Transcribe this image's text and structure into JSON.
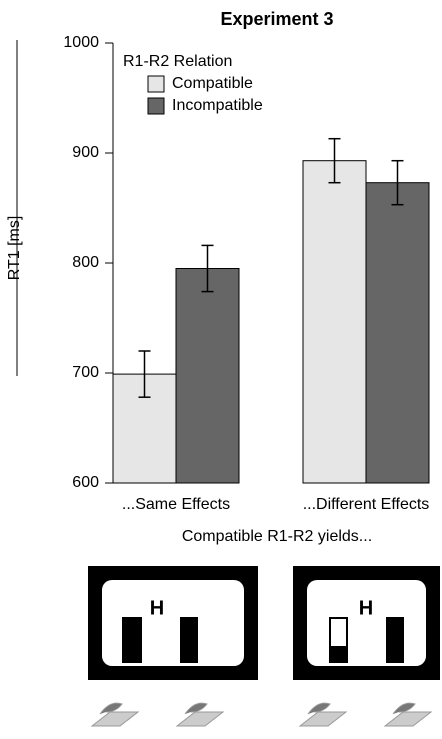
{
  "chart_data": {
    "type": "bar",
    "title": "Experiment 3",
    "ylabel": "RT1 [ms]",
    "xlabel": "Compatible R1-R2 yields...",
    "legend_title": "R1-R2 Relation",
    "categories": [
      "...Same Effects",
      "...Different Effects"
    ],
    "series": [
      {
        "name": "Compatible",
        "color": "#e6e6e6",
        "values": [
          699,
          893
        ],
        "errors": [
          21,
          20
        ]
      },
      {
        "name": "Incompatible",
        "color": "#666666",
        "values": [
          795,
          873
        ],
        "errors": [
          21,
          20
        ]
      }
    ],
    "ylim": [
      600,
      1000
    ],
    "yticks": [
      600,
      700,
      800,
      900,
      1000
    ]
  },
  "illustration": {
    "screens": [
      {
        "letter": "H"
      },
      {
        "letter": "H"
      }
    ]
  }
}
